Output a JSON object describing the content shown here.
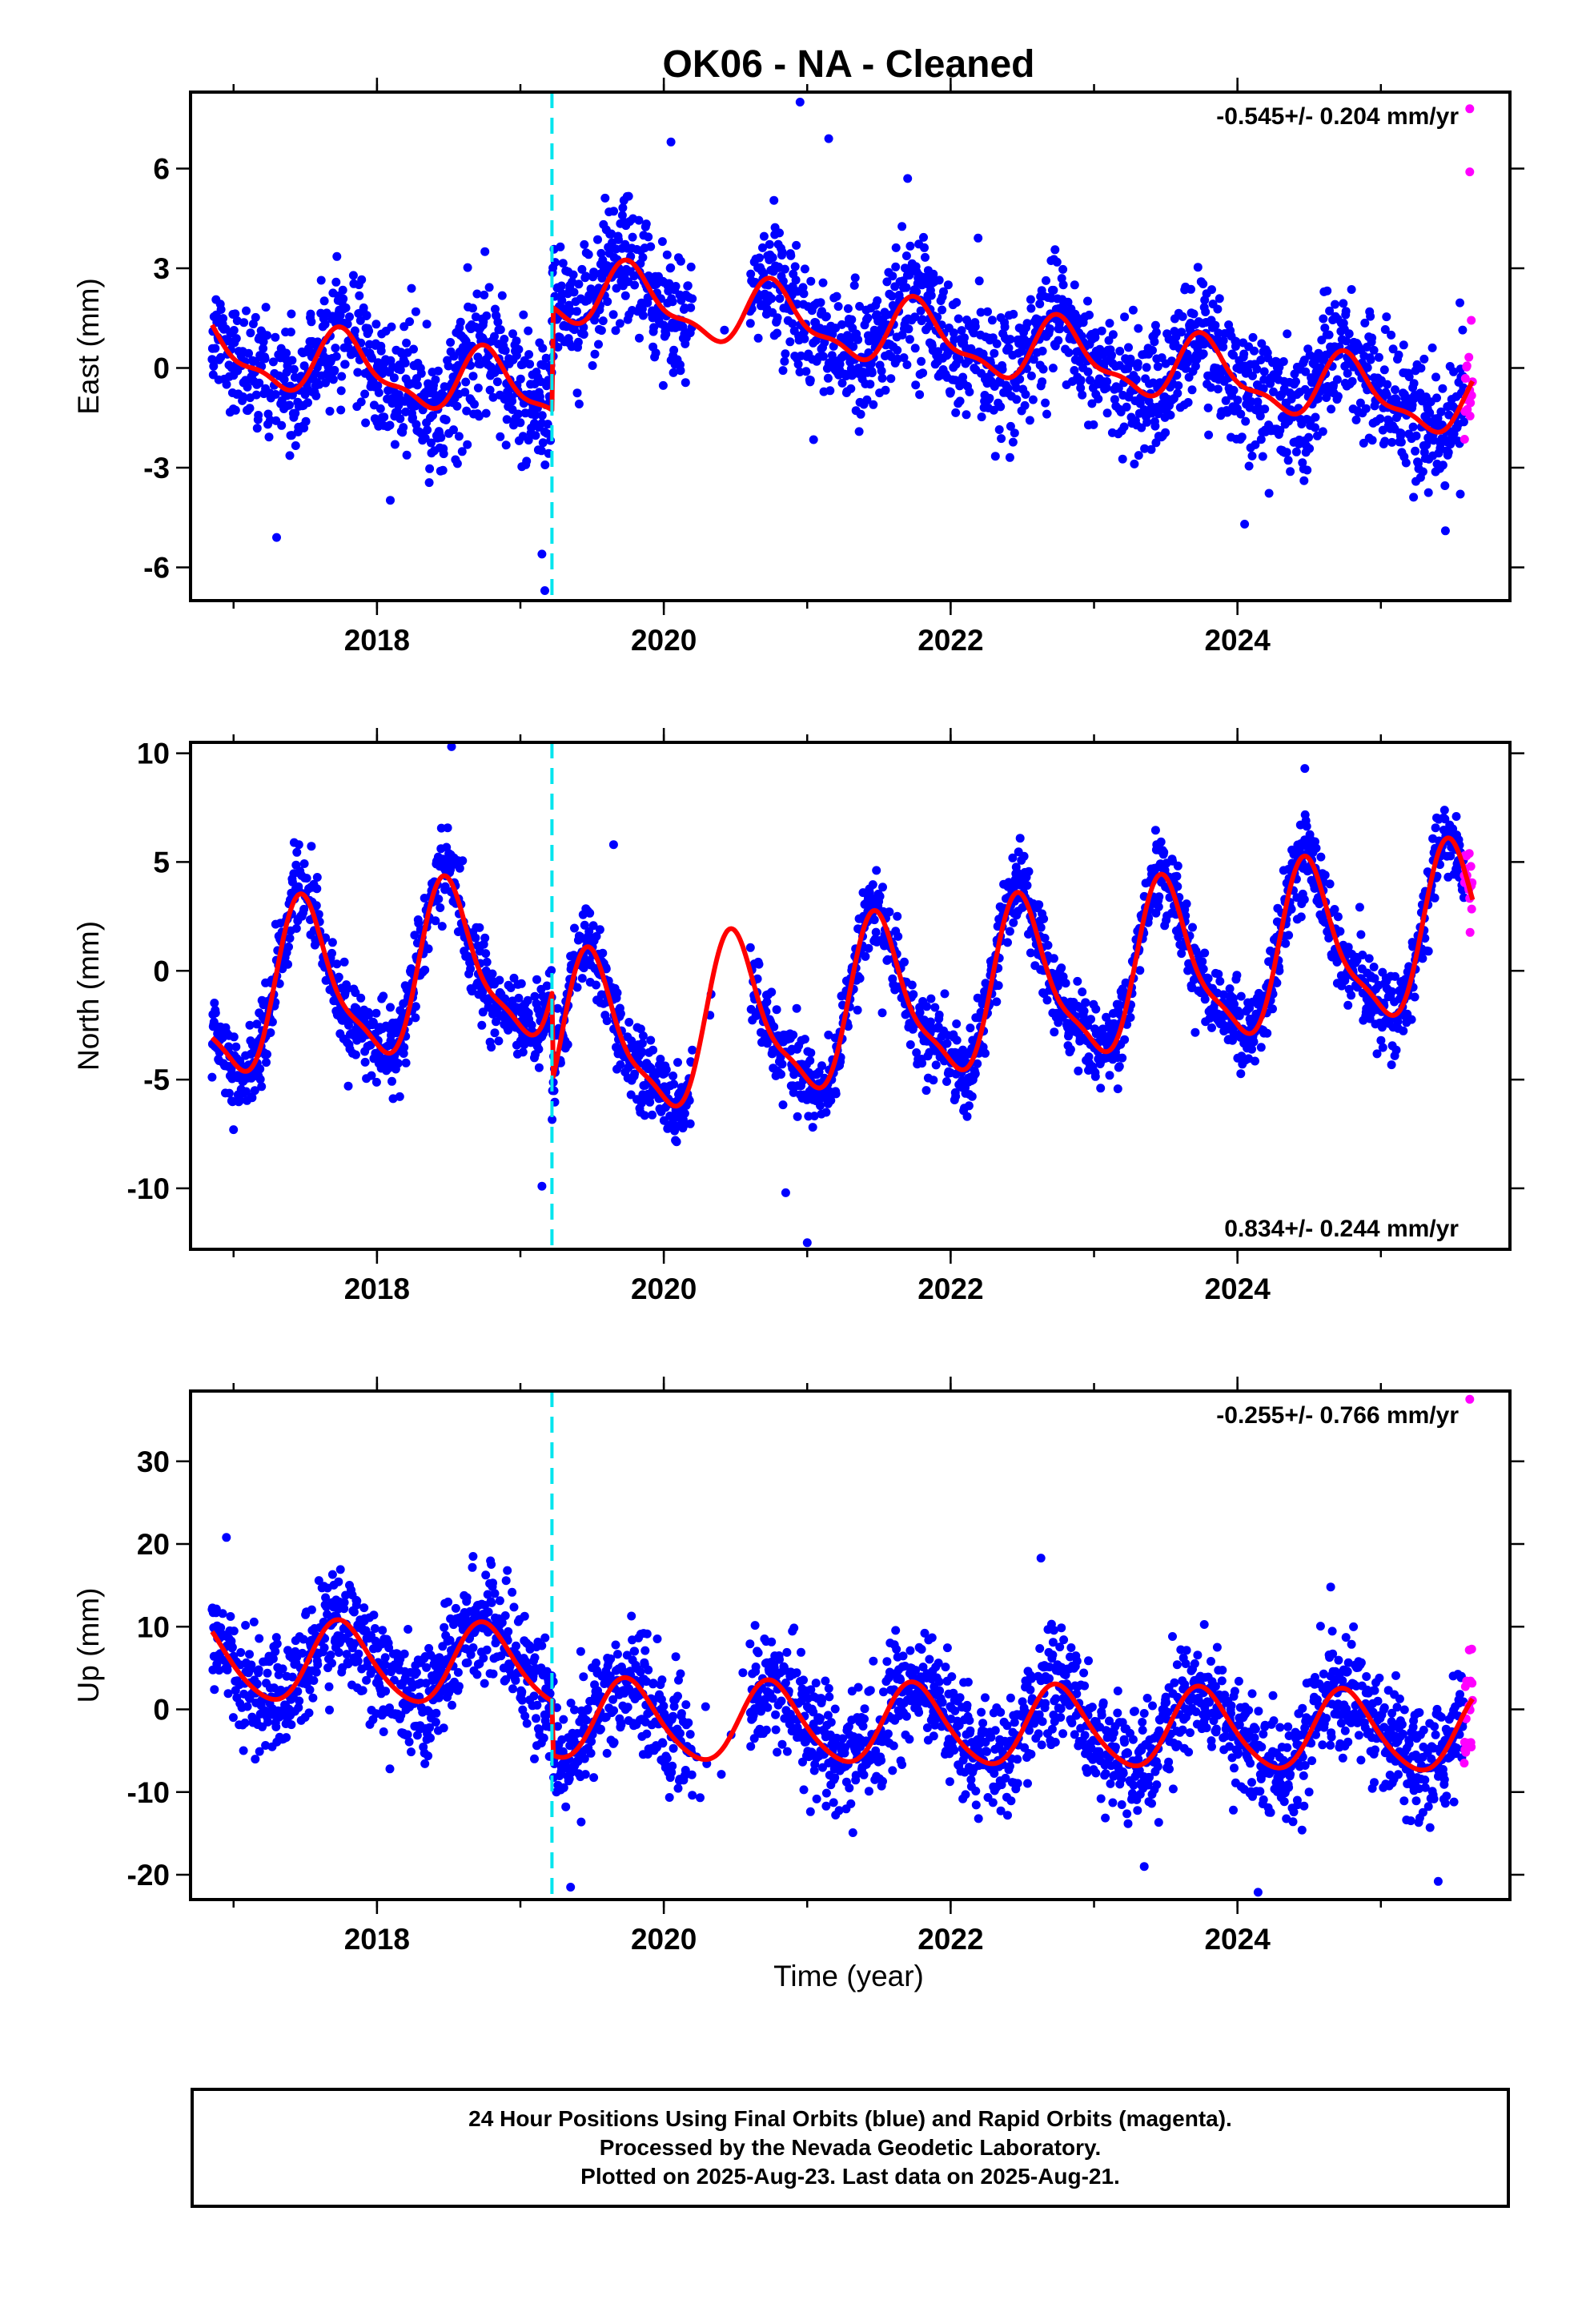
{
  "title": "OK06  - NA - Cleaned",
  "colors": {
    "final_orbits": "#0000ff",
    "rapid_orbits": "#ff00ff",
    "model": "#ff0000",
    "equipment_change": "#00e5ee"
  },
  "x_axis": {
    "xlabel": "Time (year)",
    "xlim": [
      2016.7,
      2025.9
    ],
    "ticks": [
      2018,
      2020,
      2022,
      2024
    ],
    "tick_labels": [
      "2018",
      "2020",
      "2022",
      "2024"
    ]
  },
  "equipment_change_year": 2019.22,
  "chart_data": [
    {
      "type": "scatter",
      "name": "east",
      "ylabel": "East (mm)",
      "ylim": [
        -7,
        8.3
      ],
      "y_ticks": [
        -6,
        -3,
        0,
        3,
        6
      ],
      "y_tick_labels": [
        "-6",
        "-3",
        "0",
        "3",
        "6"
      ],
      "rate_text": "-0.545+/- 0.204 mm/yr",
      "rate_position": "top-right",
      "data_start": 2016.85,
      "data_end": 2025.64,
      "rapid_start": 2025.58,
      "model": {
        "break_year": 2019.22,
        "pre_offset": -1.2,
        "post_offset": 1.9,
        "trend_mm_per_yr": -0.545,
        "annual_amp": 0.9,
        "annual_phase_year": 0.78,
        "semiannual_amp": 0.35,
        "noise_sd": 0.95
      },
      "outliers": [
        {
          "x": 2019.17,
          "y": -6.7
        },
        {
          "x": 2019.15,
          "y": -5.6
        },
        {
          "x": 2017.3,
          "y": -5.1
        },
        {
          "x": 2020.95,
          "y": 8.0
        },
        {
          "x": 2021.15,
          "y": 6.9
        },
        {
          "x": 2020.05,
          "y": 6.8
        },
        {
          "x": 2024.05,
          "y": -4.7
        },
        {
          "x": 2025.45,
          "y": -4.9
        },
        {
          "x": 2021.7,
          "y": 5.7
        },
        {
          "x": 2025.62,
          "y": 7.8
        },
        {
          "x": 2025.62,
          "y": 5.9
        }
      ]
    },
    {
      "type": "scatter",
      "name": "north",
      "ylabel": "North (mm)",
      "ylim": [
        -12.8,
        10.5
      ],
      "y_ticks": [
        -10,
        -5,
        0,
        5,
        10
      ],
      "y_tick_labels": [
        "-10",
        "-5",
        "0",
        "5",
        "10"
      ],
      "rate_text": "0.834+/- 0.244 mm/yr",
      "rate_position": "bottom-right",
      "data_start": 2016.85,
      "data_end": 2025.64,
      "rapid_start": 2025.58,
      "model": {
        "break_year": 2019.22,
        "pre_offset": 1.2,
        "post_offset": -2.9,
        "trend_mm_per_yr": 0.834,
        "annual_amp": 3.6,
        "annual_phase_year": 0.5,
        "semiannual_amp": 1.0,
        "noise_sd": 0.9
      },
      "outliers": [
        {
          "x": 2018.52,
          "y": 10.3
        },
        {
          "x": 2017.0,
          "y": -7.3
        },
        {
          "x": 2017.8,
          "y": -5.3
        },
        {
          "x": 2019.15,
          "y": -9.9
        },
        {
          "x": 2021.0,
          "y": -12.5
        },
        {
          "x": 2020.85,
          "y": -10.2
        },
        {
          "x": 2024.47,
          "y": 9.3
        },
        {
          "x": 2019.65,
          "y": 5.8
        }
      ]
    },
    {
      "type": "scatter",
      "name": "up",
      "ylabel": "Up (mm)",
      "ylim": [
        -23,
        38.5
      ],
      "y_ticks": [
        -20,
        -10,
        0,
        10,
        20,
        30
      ],
      "y_tick_labels": [
        "-20",
        "-10",
        "0",
        "10",
        "20",
        "30"
      ],
      "rate_text": "-0.255+/- 0.766 mm/yr",
      "rate_position": "top-right",
      "data_start": 2016.85,
      "data_end": 2025.64,
      "rapid_start": 2025.58,
      "model": {
        "break_year": 2019.22,
        "pre_offset": 5.0,
        "post_offset": -1.5,
        "trend_mm_per_yr": -0.255,
        "annual_amp": 4.8,
        "annual_phase_year": 0.75,
        "semiannual_amp": 0.6,
        "noise_sd": 3.4
      },
      "outliers": [
        {
          "x": 2025.62,
          "y": 37.5
        },
        {
          "x": 2019.35,
          "y": -21.5
        },
        {
          "x": 2025.4,
          "y": -20.8
        },
        {
          "x": 2022.63,
          "y": 18.3
        },
        {
          "x": 2018.67,
          "y": 18.5
        },
        {
          "x": 2016.95,
          "y": 20.8
        },
        {
          "x": 2023.35,
          "y": -19.0
        },
        {
          "x": 2024.65,
          "y": 14.8
        }
      ]
    }
  ],
  "caption": {
    "line1": "24 Hour Positions Using Final Orbits (blue) and Rapid Orbits (magenta).",
    "line2": "Processed by the Nevada Geodetic Laboratory.",
    "line3": "Plotted on 2025-Aug-23. Last data on 2025-Aug-21."
  }
}
